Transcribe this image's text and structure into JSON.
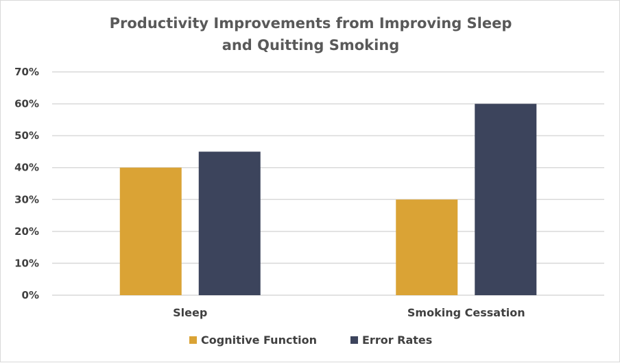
{
  "chart_data": {
    "type": "bar",
    "title_lines": [
      "Productivity Improvements from Improving Sleep",
      "and Quitting Smoking"
    ],
    "categories": [
      "Sleep",
      "Smoking Cessation"
    ],
    "series": [
      {
        "name": "Cognitive Function",
        "values": [
          40,
          30
        ],
        "color": "#DAA335"
      },
      {
        "name": "Error Rates",
        "values": [
          45,
          60
        ],
        "color": "#3C445C"
      }
    ],
    "ylim": [
      0,
      70
    ],
    "yticks": [
      "0%",
      "10%",
      "20%",
      "30%",
      "40%",
      "50%",
      "60%",
      "70%"
    ],
    "y_unit": "%",
    "grid": true,
    "legend": "bottom"
  }
}
